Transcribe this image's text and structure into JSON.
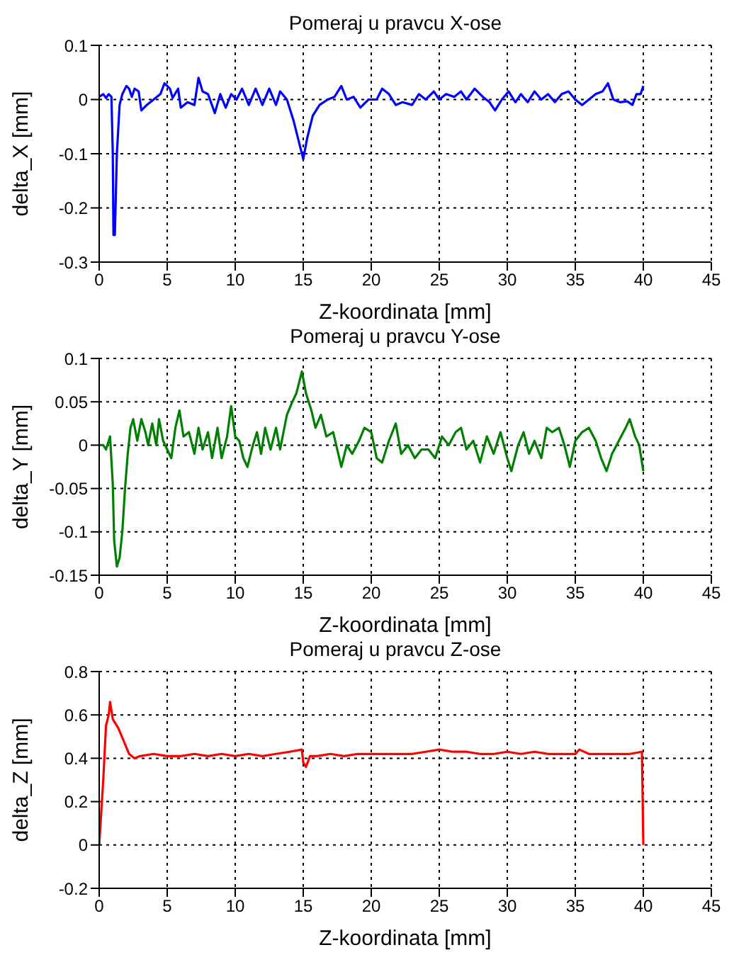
{
  "chart_data": [
    {
      "type": "line",
      "title": "Pomeraj u pravcu X-ose",
      "xlabel": "Z-koordinata [mm]",
      "ylabel": "delta_X [mm]",
      "xlim": [
        0,
        45
      ],
      "xticks": [
        0,
        5,
        10,
        15,
        20,
        25,
        30,
        35,
        40,
        45
      ],
      "ylim": [
        -0.3,
        0.1
      ],
      "yticks": [
        -0.3,
        -0.2,
        -0.1,
        0,
        0.1
      ],
      "grid": true,
      "legend": false,
      "series": [
        {
          "color": "#0000ff",
          "x": [
            0,
            0.3,
            0.5,
            0.7,
            0.9,
            1.0,
            1.05,
            1.15,
            1.3,
            1.5,
            1.7,
            2.0,
            2.2,
            2.4,
            2.6,
            2.9,
            3.1,
            3.5,
            4.0,
            4.5,
            4.8,
            5.2,
            5.4,
            5.8,
            6.0,
            6.5,
            7.0,
            7.3,
            7.6,
            8.0,
            8.5,
            8.9,
            9.3,
            9.7,
            10.1,
            10.5,
            11.0,
            11.5,
            12.0,
            12.5,
            13.0,
            13.3,
            13.8,
            14.3,
            14.7,
            15.0,
            15.3,
            15.7,
            16.2,
            16.8,
            17.3,
            17.8,
            18.2,
            18.7,
            19.2,
            19.8,
            20.4,
            20.8,
            21.3,
            21.8,
            22.3,
            23.0,
            23.5,
            24.0,
            24.6,
            25.0,
            25.5,
            26.1,
            26.6,
            27.0,
            27.6,
            28.2,
            28.7,
            29.1,
            29.6,
            30.1,
            30.6,
            31.0,
            31.5,
            32.0,
            32.5,
            33.0,
            33.5,
            34.0,
            34.5,
            35.0,
            35.5,
            36.0,
            36.5,
            37.0,
            37.4,
            37.8,
            38.3,
            38.8,
            39.2,
            39.5,
            39.8,
            40.0
          ],
          "values": [
            0.005,
            0.01,
            0.003,
            0.01,
            0.005,
            -0.1,
            -0.25,
            -0.25,
            -0.1,
            -0.01,
            0.01,
            0.025,
            0.02,
            0.005,
            0.02,
            0.015,
            -0.02,
            -0.01,
            0,
            0.01,
            0.03,
            0.02,
            0.003,
            0.02,
            -0.015,
            -0.005,
            -0.01,
            0.04,
            0.015,
            0.01,
            -0.025,
            0.01,
            -0.015,
            0.01,
            0,
            0.02,
            -0.01,
            0.02,
            -0.01,
            0.02,
            -0.01,
            0.015,
            0,
            -0.04,
            -0.08,
            -0.11,
            -0.07,
            -0.03,
            -0.01,
            0,
            0.005,
            0.025,
            0,
            0.005,
            -0.015,
            0,
            0,
            0.02,
            0.01,
            -0.01,
            -0.005,
            -0.01,
            0.01,
            0,
            0.015,
            0,
            0.01,
            0.005,
            0.015,
            0,
            0.02,
            0.005,
            -0.005,
            -0.02,
            0,
            0.015,
            -0.005,
            0.01,
            -0.005,
            0.015,
            0,
            0.01,
            -0.005,
            0.01,
            0.015,
            0,
            -0.01,
            0,
            0.01,
            0.015,
            0.03,
            0,
            -0.005,
            -0.003,
            -0.01,
            0.01,
            0.01,
            0.025
          ]
        }
      ]
    },
    {
      "type": "line",
      "title": "Pomeraj u pravcu Y-ose",
      "xlabel": "Z-koordinata [mm]",
      "ylabel": "delta_Y [mm]",
      "xlim": [
        0,
        45
      ],
      "xticks": [
        0,
        5,
        10,
        15,
        20,
        25,
        30,
        35,
        40,
        45
      ],
      "ylim": [
        -0.15,
        0.1
      ],
      "yticks": [
        -0.15,
        -0.1,
        -0.05,
        0,
        0.05,
        0.1
      ],
      "grid": true,
      "legend": false,
      "series": [
        {
          "color": "#008000",
          "x": [
            0,
            0.3,
            0.5,
            0.8,
            1.0,
            1.1,
            1.3,
            1.5,
            1.7,
            1.9,
            2.1,
            2.3,
            2.5,
            2.8,
            3.1,
            3.4,
            3.6,
            3.9,
            4.2,
            4.4,
            4.7,
            5.0,
            5.3,
            5.6,
            5.9,
            6.2,
            6.6,
            7.0,
            7.3,
            7.6,
            8.0,
            8.3,
            8.7,
            9.0,
            9.4,
            9.7,
            10.0,
            10.3,
            10.6,
            10.9,
            11.3,
            11.6,
            11.9,
            12.2,
            12.6,
            13.0,
            13.3,
            13.8,
            14.2,
            14.5,
            14.9,
            15.2,
            15.6,
            15.9,
            16.3,
            16.7,
            17.2,
            17.8,
            18.2,
            18.6,
            19.1,
            19.5,
            20.0,
            20.4,
            20.8,
            21.3,
            21.8,
            22.2,
            22.7,
            23.2,
            23.7,
            24.2,
            24.7,
            25.2,
            25.7,
            26.2,
            26.6,
            27.0,
            27.5,
            28.0,
            28.5,
            29.0,
            29.5,
            30.0,
            30.3,
            30.8,
            31.2,
            31.6,
            32.0,
            32.5,
            32.9,
            33.3,
            33.8,
            34.2,
            34.6,
            35.0,
            35.5,
            36.0,
            36.5,
            36.9,
            37.3,
            37.7,
            38.2,
            38.7,
            39.0,
            39.4,
            39.7,
            40.0
          ],
          "values": [
            0,
            0,
            -0.005,
            0.01,
            -0.045,
            -0.11,
            -0.14,
            -0.13,
            -0.1,
            -0.05,
            -0.01,
            0.02,
            0.03,
            0.005,
            0.03,
            0.015,
            0,
            0.025,
            0,
            0.03,
            0.005,
            -0.005,
            -0.015,
            0.02,
            0.04,
            0.01,
            0.015,
            -0.01,
            0.02,
            -0.005,
            0.015,
            -0.015,
            0.02,
            -0.015,
            0.01,
            0.045,
            0.01,
            0.005,
            -0.015,
            -0.025,
            0,
            0.015,
            -0.01,
            0.02,
            -0.005,
            0.02,
            -0.005,
            0.035,
            0.05,
            0.06,
            0.085,
            0.06,
            0.04,
            0.02,
            0.035,
            0.01,
            0.015,
            -0.025,
            0,
            -0.01,
            0.005,
            0.02,
            0.015,
            -0.015,
            -0.02,
            0.005,
            0.025,
            -0.01,
            0,
            -0.015,
            -0.005,
            -0.005,
            -0.015,
            0.01,
            0,
            0.015,
            0.02,
            -0.005,
            0.005,
            -0.02,
            0.01,
            -0.01,
            0.015,
            -0.015,
            -0.03,
            0,
            0.015,
            -0.01,
            0.005,
            -0.015,
            0.02,
            0.015,
            0.02,
            0,
            -0.025,
            0.005,
            0.015,
            0.02,
            0.005,
            -0.015,
            -0.03,
            -0.01,
            0.005,
            0.02,
            0.03,
            0.01,
            0,
            -0.03
          ]
        }
      ]
    },
    {
      "type": "line",
      "title": "Pomeraj u pravcu Z-ose",
      "xlabel": "Z-koordinata [mm]",
      "ylabel": "delta_Z [mm]",
      "xlim": [
        0,
        45
      ],
      "xticks": [
        0,
        5,
        10,
        15,
        20,
        25,
        30,
        35,
        40,
        45
      ],
      "ylim": [
        -0.2,
        0.8
      ],
      "yticks": [
        -0.2,
        0,
        0.2,
        0.4,
        0.6,
        0.8
      ],
      "grid": true,
      "legend": false,
      "series": [
        {
          "color": "#ff0000",
          "x": [
            0,
            0.3,
            0.5,
            0.7,
            0.8,
            0.9,
            1.0,
            1.4,
            1.8,
            2.2,
            2.6,
            3,
            4,
            5,
            6,
            7,
            8,
            9,
            10,
            11,
            12,
            13,
            14,
            14.9,
            15.0,
            15.2,
            15.5,
            16,
            17,
            18,
            19,
            20,
            21,
            22,
            23,
            24,
            25,
            26,
            27,
            28,
            29,
            30,
            31,
            32,
            33,
            34,
            35,
            35.3,
            36,
            37,
            38,
            39,
            39.9,
            40.0
          ],
          "values": [
            0,
            0.3,
            0.55,
            0.6,
            0.66,
            0.62,
            0.58,
            0.54,
            0.48,
            0.42,
            0.4,
            0.41,
            0.42,
            0.41,
            0.41,
            0.42,
            0.41,
            0.42,
            0.41,
            0.42,
            0.41,
            0.42,
            0.43,
            0.44,
            0.38,
            0.36,
            0.41,
            0.41,
            0.42,
            0.41,
            0.42,
            0.42,
            0.42,
            0.42,
            0.42,
            0.43,
            0.44,
            0.43,
            0.43,
            0.42,
            0.42,
            0.43,
            0.42,
            0.43,
            0.42,
            0.42,
            0.42,
            0.44,
            0.42,
            0.42,
            0.42,
            0.42,
            0.43,
            0
          ]
        }
      ]
    }
  ]
}
